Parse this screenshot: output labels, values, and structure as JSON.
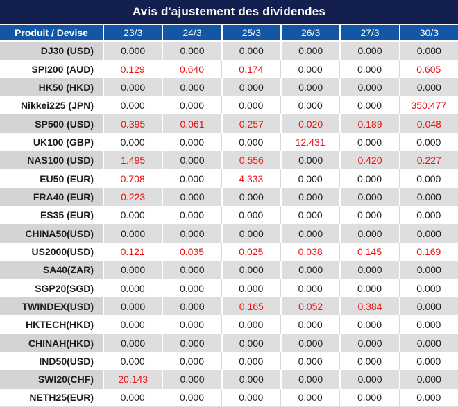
{
  "title": "Avis d'ajustement des dividendes",
  "colors": {
    "title_bg": "#13204f",
    "header_bg": "#1356a5",
    "row_gray": "#dedede",
    "product_gray": "#d4d4d7",
    "value_black": "#1c1c1c",
    "value_red": "#ee1111"
  },
  "table": {
    "product_header": "Produit / Devise",
    "date_headers": [
      "23/3",
      "24/3",
      "25/3",
      "26/3",
      "27/3",
      "30/3"
    ],
    "rows": [
      {
        "product": "DJ30 (USD)",
        "cells": [
          {
            "v": "0.000"
          },
          {
            "v": "0.000"
          },
          {
            "v": "0.000"
          },
          {
            "v": "0.000"
          },
          {
            "v": "0.000"
          },
          {
            "v": "0.000"
          }
        ]
      },
      {
        "product": "SPI200 (AUD)",
        "cells": [
          {
            "v": "0.129",
            "red": true
          },
          {
            "v": "0.640",
            "red": true
          },
          {
            "v": "0.174",
            "red": true
          },
          {
            "v": "0.000"
          },
          {
            "v": "0.000"
          },
          {
            "v": "0.605",
            "red": true
          }
        ]
      },
      {
        "product": "HK50 (HKD)",
        "cells": [
          {
            "v": "0.000"
          },
          {
            "v": "0.000"
          },
          {
            "v": "0.000"
          },
          {
            "v": "0.000"
          },
          {
            "v": "0.000"
          },
          {
            "v": "0.000"
          }
        ]
      },
      {
        "product": "Nikkei225 (JPN)",
        "cells": [
          {
            "v": "0.000"
          },
          {
            "v": "0.000"
          },
          {
            "v": "0.000"
          },
          {
            "v": "0.000"
          },
          {
            "v": "0.000"
          },
          {
            "v": "350.477",
            "red": true
          }
        ]
      },
      {
        "product": "SP500 (USD)",
        "cells": [
          {
            "v": "0.395",
            "red": true
          },
          {
            "v": "0.061",
            "red": true
          },
          {
            "v": "0.257",
            "red": true
          },
          {
            "v": "0.020",
            "red": true
          },
          {
            "v": "0.189",
            "red": true
          },
          {
            "v": "0.048",
            "red": true
          }
        ]
      },
      {
        "product": "UK100 (GBP)",
        "cells": [
          {
            "v": "0.000"
          },
          {
            "v": "0.000"
          },
          {
            "v": "0.000"
          },
          {
            "v": "12.431",
            "red": true
          },
          {
            "v": "0.000"
          },
          {
            "v": "0.000"
          }
        ]
      },
      {
        "product": "NAS100 (USD)",
        "cells": [
          {
            "v": "1.495",
            "red": true
          },
          {
            "v": "0.000"
          },
          {
            "v": "0.556",
            "red": true
          },
          {
            "v": "0.000"
          },
          {
            "v": "0.420",
            "red": true
          },
          {
            "v": "0.227",
            "red": true
          }
        ]
      },
      {
        "product": "EU50 (EUR)",
        "cells": [
          {
            "v": "0.708",
            "red": true
          },
          {
            "v": "0.000"
          },
          {
            "v": "4.333",
            "red": true
          },
          {
            "v": "0.000"
          },
          {
            "v": "0.000"
          },
          {
            "v": "0.000"
          }
        ]
      },
      {
        "product": "FRA40 (EUR)",
        "cells": [
          {
            "v": "0.223",
            "red": true
          },
          {
            "v": "0.000"
          },
          {
            "v": "0.000"
          },
          {
            "v": "0.000"
          },
          {
            "v": "0.000"
          },
          {
            "v": "0.000"
          }
        ]
      },
      {
        "product": "ES35 (EUR)",
        "cells": [
          {
            "v": "0.000"
          },
          {
            "v": "0.000"
          },
          {
            "v": "0.000"
          },
          {
            "v": "0.000"
          },
          {
            "v": "0.000"
          },
          {
            "v": "0.000"
          }
        ]
      },
      {
        "product": "CHINA50(USD)",
        "cells": [
          {
            "v": "0.000"
          },
          {
            "v": "0.000"
          },
          {
            "v": "0.000"
          },
          {
            "v": "0.000"
          },
          {
            "v": "0.000"
          },
          {
            "v": "0.000"
          }
        ]
      },
      {
        "product": "US2000(USD)",
        "cells": [
          {
            "v": "0.121",
            "red": true
          },
          {
            "v": "0.035",
            "red": true
          },
          {
            "v": "0.025",
            "red": true
          },
          {
            "v": "0.038",
            "red": true
          },
          {
            "v": "0.145",
            "red": true
          },
          {
            "v": "0.169",
            "red": true
          }
        ]
      },
      {
        "product": "SA40(ZAR)",
        "cells": [
          {
            "v": "0.000"
          },
          {
            "v": "0.000"
          },
          {
            "v": "0.000"
          },
          {
            "v": "0.000"
          },
          {
            "v": "0.000"
          },
          {
            "v": "0.000"
          }
        ]
      },
      {
        "product": "SGP20(SGD)",
        "cells": [
          {
            "v": "0.000"
          },
          {
            "v": "0.000"
          },
          {
            "v": "0.000"
          },
          {
            "v": "0.000"
          },
          {
            "v": "0.000"
          },
          {
            "v": "0.000"
          }
        ]
      },
      {
        "product": "TWINDEX(USD)",
        "cells": [
          {
            "v": "0.000"
          },
          {
            "v": "0.000"
          },
          {
            "v": "0.165",
            "red": true
          },
          {
            "v": "0.052",
            "red": true
          },
          {
            "v": "0.384",
            "red": true
          },
          {
            "v": "0.000"
          }
        ]
      },
      {
        "product": "HKTECH(HKD)",
        "cells": [
          {
            "v": "0.000"
          },
          {
            "v": "0.000"
          },
          {
            "v": "0.000"
          },
          {
            "v": "0.000"
          },
          {
            "v": "0.000"
          },
          {
            "v": "0.000"
          }
        ]
      },
      {
        "product": "CHINAH(HKD)",
        "cells": [
          {
            "v": "0.000"
          },
          {
            "v": "0.000"
          },
          {
            "v": "0.000"
          },
          {
            "v": "0.000"
          },
          {
            "v": "0.000"
          },
          {
            "v": "0.000"
          }
        ]
      },
      {
        "product": "IND50(USD)",
        "cells": [
          {
            "v": "0.000"
          },
          {
            "v": "0.000"
          },
          {
            "v": "0.000"
          },
          {
            "v": "0.000"
          },
          {
            "v": "0.000"
          },
          {
            "v": "0.000"
          }
        ]
      },
      {
        "product": "SWI20(CHF)",
        "cells": [
          {
            "v": "20.143",
            "red": true
          },
          {
            "v": "0.000"
          },
          {
            "v": "0.000"
          },
          {
            "v": "0.000"
          },
          {
            "v": "0.000"
          },
          {
            "v": "0.000"
          }
        ]
      },
      {
        "product": "NETH25(EUR)",
        "cells": [
          {
            "v": "0.000"
          },
          {
            "v": "0.000"
          },
          {
            "v": "0.000"
          },
          {
            "v": "0.000"
          },
          {
            "v": "0.000"
          },
          {
            "v": "0.000"
          }
        ]
      }
    ]
  }
}
